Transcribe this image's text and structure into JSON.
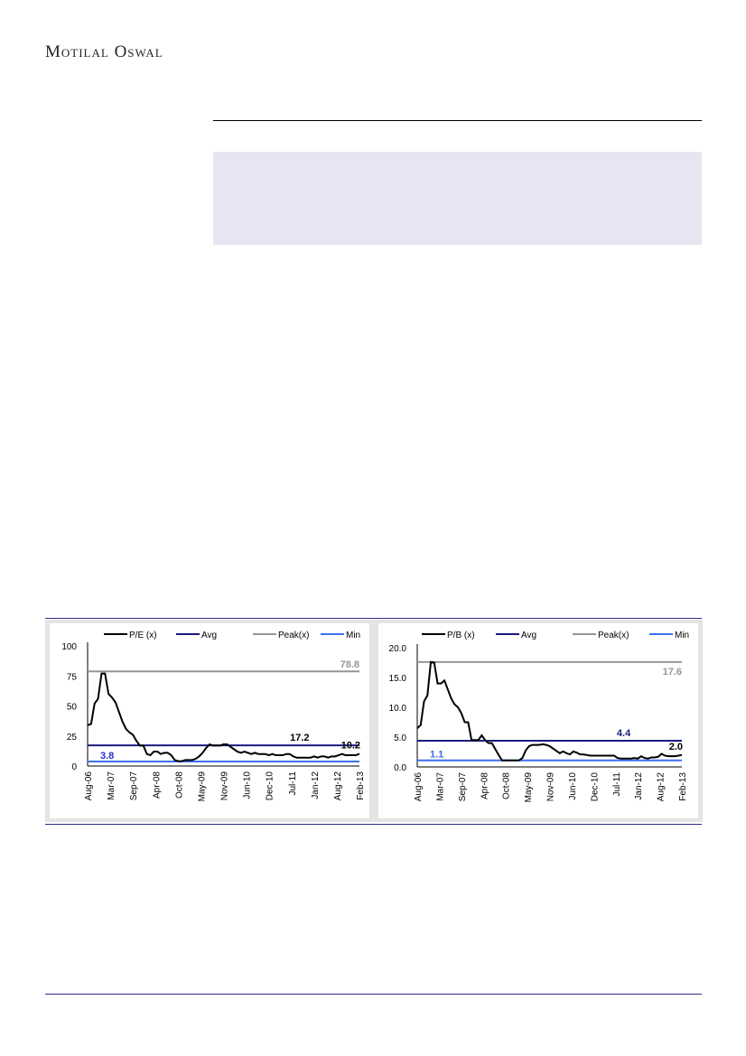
{
  "header": {
    "logo": "Motilal Oswal"
  },
  "colors": {
    "series": "#000000",
    "avg": "#1a1a80",
    "peak": "#969696",
    "min": "#3a6ff0",
    "rule": "#2b2b8f",
    "shade": "#e6e6f2"
  },
  "chart_data": [
    {
      "type": "line",
      "legend": [
        "P/E (x)",
        "Avg",
        "Peak(x)",
        "Min"
      ],
      "x_ticks": [
        "Aug-06",
        "Mar-07",
        "Sep-07",
        "Apr-08",
        "Oct-08",
        "May-09",
        "Nov-09",
        "Jun-10",
        "Dec-10",
        "Jul-11",
        "Jan-12",
        "Aug-12",
        "Feb-13"
      ],
      "x_range": [
        "Aug-06",
        "Feb-13"
      ],
      "ylim": [
        0,
        100
      ],
      "y_ticks": [
        "0",
        "25",
        "50",
        "75",
        "100"
      ],
      "series": [
        {
          "name": "P/E (x)",
          "values": [
            34,
            35,
            52,
            56,
            77,
            77,
            60,
            57,
            53,
            45,
            37,
            31,
            28,
            26,
            21,
            17,
            17,
            10,
            9,
            12,
            12,
            10,
            11,
            11,
            9,
            5,
            4,
            4,
            5,
            5,
            5,
            6,
            8,
            11,
            15,
            18,
            17,
            17,
            17,
            18,
            18,
            16,
            14,
            12,
            11,
            12,
            11,
            10,
            11,
            10,
            10,
            10,
            9,
            10,
            9,
            9,
            9,
            10,
            10,
            8,
            7,
            7,
            7,
            7,
            7,
            8,
            7,
            8,
            8,
            7,
            8,
            8,
            9,
            10,
            9,
            9,
            9,
            9,
            10.2
          ]
        }
      ],
      "avg": 17.2,
      "peak": 78.8,
      "min": 3.8,
      "last": 10.2,
      "labels": {
        "avg": "17.2",
        "peak": "78.8",
        "min": "3.8",
        "last": "10.2"
      }
    },
    {
      "type": "line",
      "legend": [
        "P/B (x)",
        "Avg",
        "Peak(x)",
        "Min"
      ],
      "x_ticks": [
        "Aug-06",
        "Mar-07",
        "Sep-07",
        "Apr-08",
        "Oct-08",
        "May-09",
        "Nov-09",
        "Jun-10",
        "Dec-10",
        "Jul-11",
        "Jan-12",
        "Aug-12",
        "Feb-13"
      ],
      "x_range": [
        "Aug-06",
        "Feb-13"
      ],
      "ylim": [
        0,
        20
      ],
      "y_ticks": [
        "0.0",
        "5.0",
        "10.0",
        "15.0",
        "20.0"
      ],
      "series": [
        {
          "name": "P/B (x)",
          "values": [
            6.5,
            7,
            11,
            12,
            17.6,
            17.5,
            14,
            14,
            14.5,
            13,
            11.5,
            10.5,
            10,
            9,
            7.5,
            7.5,
            4.5,
            4.5,
            4.5,
            5.3,
            4.5,
            4,
            4,
            3,
            2,
            1.1,
            1.1,
            1.1,
            1.1,
            1.1,
            1.1,
            1.5,
            2.8,
            3.5,
            3.7,
            3.7,
            3.7,
            3.8,
            3.7,
            3.5,
            3.1,
            2.7,
            2.3,
            2.6,
            2.3,
            2.1,
            2.6,
            2.4,
            2.1,
            2.1,
            2.0,
            1.9,
            1.9,
            1.9,
            1.9,
            1.9,
            1.9,
            1.9,
            1.9,
            1.5,
            1.4,
            1.4,
            1.4,
            1.4,
            1.5,
            1.4,
            1.8,
            1.5,
            1.4,
            1.6,
            1.6,
            1.7,
            2.2,
            1.9,
            1.8,
            1.8,
            1.8,
            1.9,
            2.0
          ]
        }
      ],
      "avg": 4.4,
      "peak": 17.6,
      "min": 1.1,
      "last": 2.0,
      "labels": {
        "avg": "4.4",
        "peak": "17.6",
        "min": "1.1",
        "last": "2.0"
      }
    }
  ]
}
